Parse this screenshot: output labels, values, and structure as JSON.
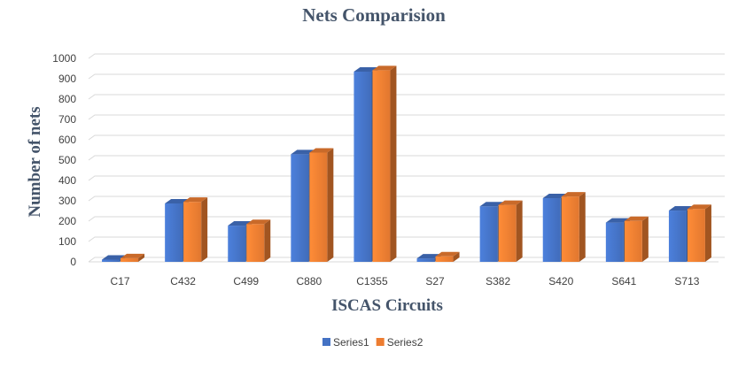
{
  "chart_data": {
    "type": "bar",
    "title": "Nets Comparision",
    "xlabel": "ISCAS Circuits",
    "ylabel": "Number of nets",
    "categories": [
      "C17",
      "C432",
      "C499",
      "C880",
      "C1355",
      "S27",
      "S382",
      "S420",
      "S641",
      "S713"
    ],
    "series": [
      {
        "name": "Series1",
        "values": [
          11,
          287,
          178,
          529,
          935,
          17,
          273,
          313,
          193,
          252
        ],
        "color": "#4472c4"
      },
      {
        "name": "Series2",
        "values": [
          18,
          295,
          186,
          537,
          942,
          27,
          280,
          321,
          201,
          260
        ],
        "color": "#ed7d31"
      }
    ],
    "ylim": [
      0,
      1000
    ],
    "yticks": [
      "0",
      "100",
      "200",
      "300",
      "400",
      "500",
      "600",
      "700",
      "800",
      "900",
      "1000"
    ],
    "style": "3d-clustered-column",
    "grid": true,
    "legend_position": "bottom"
  }
}
